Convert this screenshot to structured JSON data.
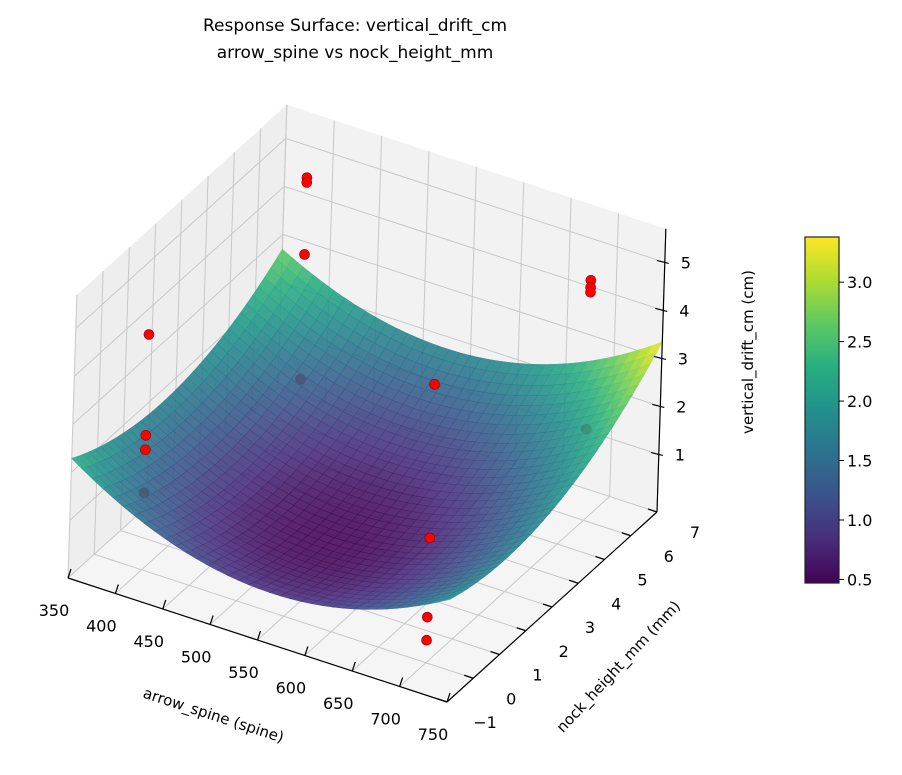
{
  "chart_data": {
    "type": "surface3d",
    "title": "Response Surface: vertical_drift_cm",
    "subtitle": "arrow_spine vs nock_height_mm",
    "xlabel": "arrow_spine (spine)",
    "ylabel": "nock_height_mm (mm)",
    "zlabel": "vertical_drift_cm (cm)",
    "colorbar_label": "",
    "colormap": "viridis",
    "xlim": [
      350,
      750
    ],
    "ylim": [
      -1,
      7
    ],
    "zlim": [
      -0.2,
      5.7
    ],
    "xticks": [
      350,
      400,
      450,
      500,
      550,
      600,
      650,
      700,
      750
    ],
    "yticks": [
      -1,
      0,
      1,
      2,
      3,
      4,
      5,
      6,
      7
    ],
    "zticks": [
      1,
      2,
      3,
      4,
      5
    ],
    "colorbar_range": [
      0.47,
      3.38
    ],
    "colorbar_ticks": [
      "0.5",
      "1.0",
      "1.5",
      "2.0",
      "2.5",
      "3.0"
    ],
    "grid": true,
    "surface_model": {
      "form": "quadratic",
      "min_value": 0.5,
      "min_at": {
        "arrow_spine": 550,
        "nock_height_mm": 1.8
      }
    },
    "points_color": "#ff0000",
    "points": [
      {
        "x": 400,
        "y": 0,
        "z": 2.6
      },
      {
        "x": 400,
        "y": 0,
        "z": 2.3
      },
      {
        "x": 400,
        "y": 0,
        "z": 4.7
      },
      {
        "x": 400,
        "y": 0,
        "z": 1.4
      },
      {
        "x": 400,
        "y": 6,
        "z": 5.0
      },
      {
        "x": 400,
        "y": 6,
        "z": 4.9
      },
      {
        "x": 400,
        "y": 6,
        "z": 3.4
      },
      {
        "x": 400,
        "y": 6,
        "z": 0.8
      },
      {
        "x": 700,
        "y": 6,
        "z": 4.8
      },
      {
        "x": 700,
        "y": 6,
        "z": 4.65
      },
      {
        "x": 700,
        "y": 6,
        "z": 4.55
      },
      {
        "x": 700,
        "y": 6,
        "z": 1.7
      },
      {
        "x": 700,
        "y": 0,
        "z": 5.6
      },
      {
        "x": 700,
        "y": 0,
        "z": 2.4
      },
      {
        "x": 700,
        "y": 0,
        "z": 0.75
      },
      {
        "x": 700,
        "y": 0,
        "z": 0.27
      }
    ]
  }
}
